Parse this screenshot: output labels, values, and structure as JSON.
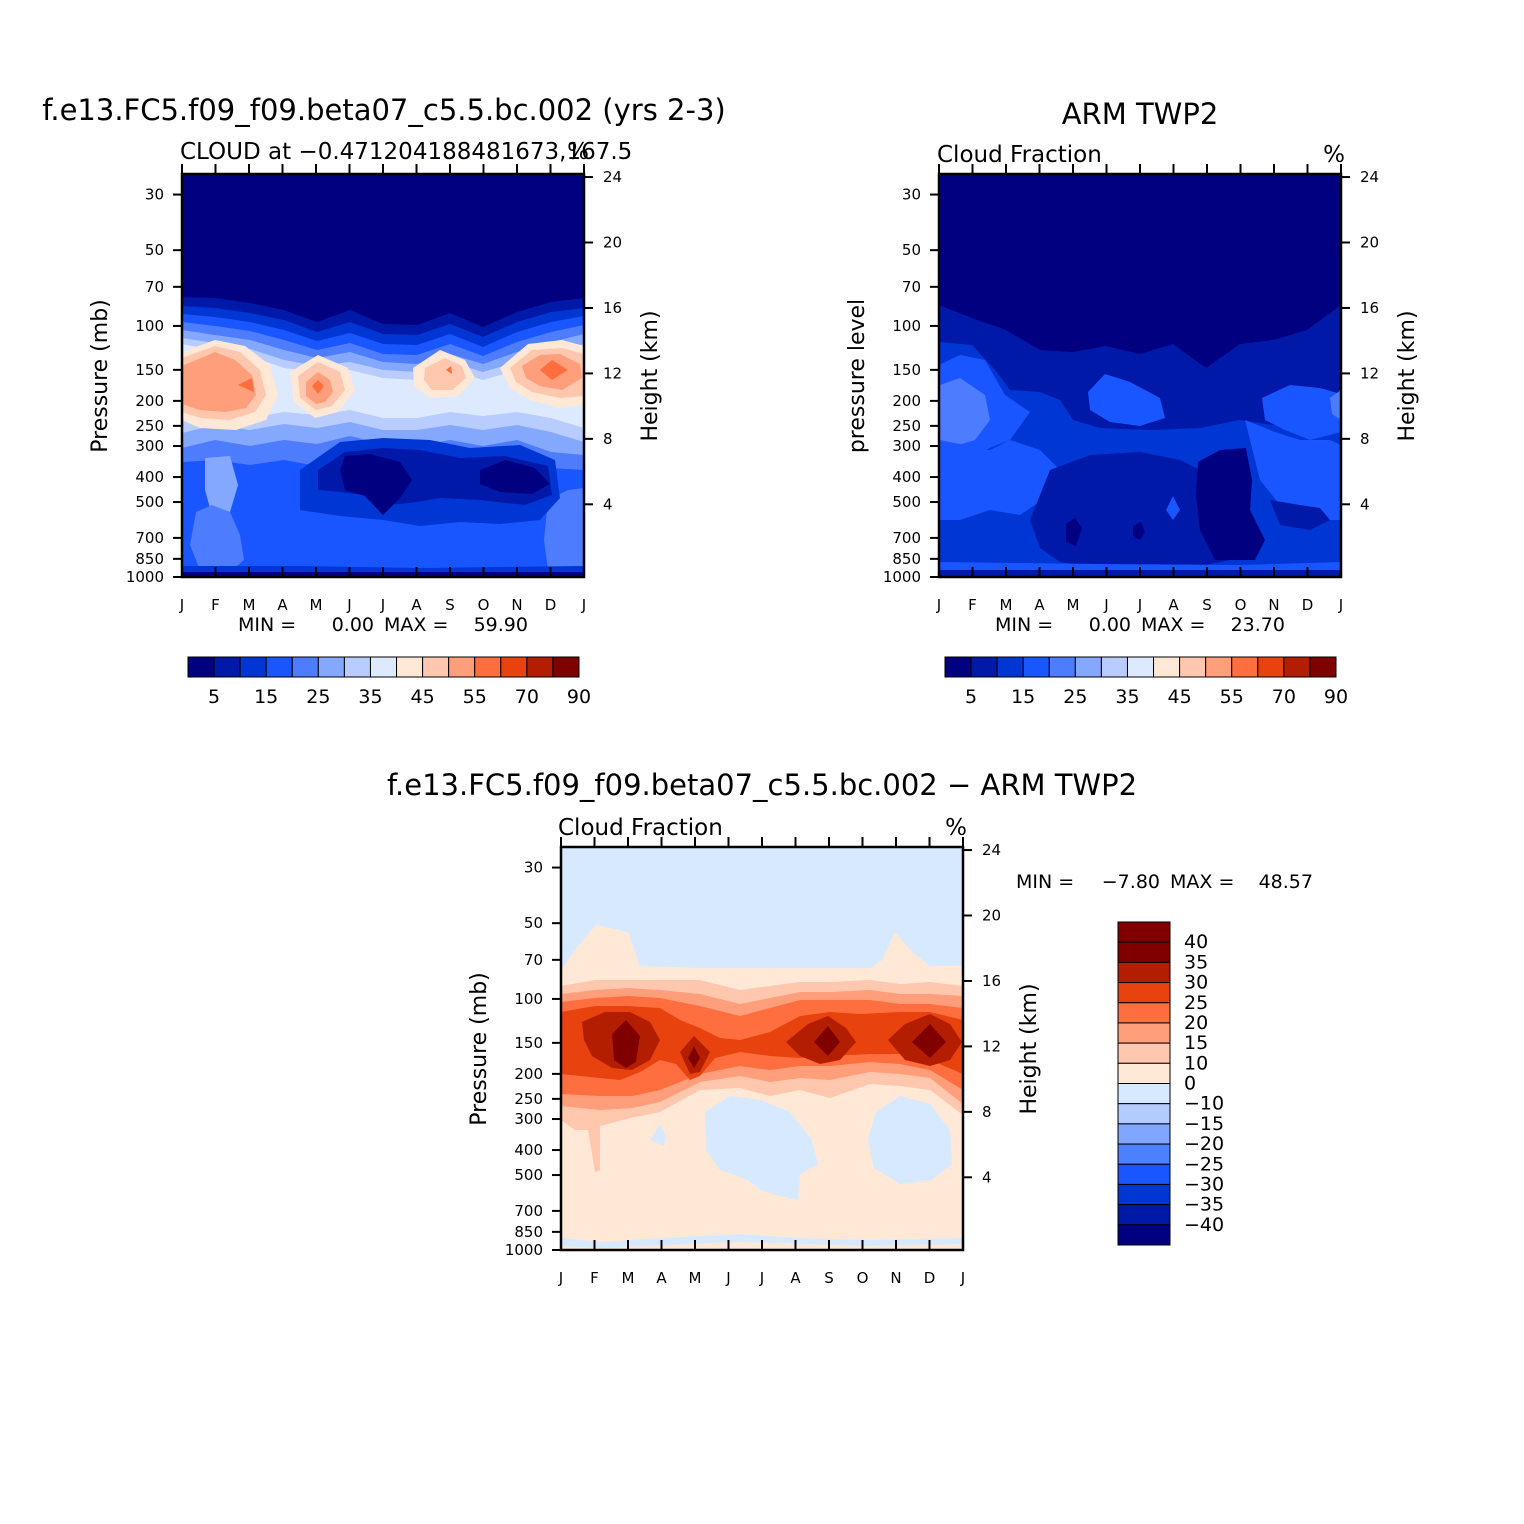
{
  "chart_data": [
    {
      "type": "contour",
      "title": "f.e13.FC5.f09_f09.beta07_c5.5.bc.002 (yrs 2-3)",
      "subtitle_left": "CLOUD at −0.471204188481673,167.5",
      "subtitle_right": "%",
      "ylabel_left": "Pressure (mb)",
      "ylabel_right": "Height (km)",
      "x_ticks": [
        "J",
        "F",
        "M",
        "A",
        "M",
        "J",
        "J",
        "A",
        "S",
        "O",
        "N",
        "D",
        "J"
      ],
      "y_ticks_pressure": [
        "30",
        "50",
        "70",
        "100",
        "150",
        "200",
        "250",
        "300",
        "400",
        "500",
        "700",
        "850",
        "1000"
      ],
      "y_ticks_height": [
        "24",
        "20",
        "16",
        "12",
        "8",
        "4"
      ],
      "min_label": "MIN =",
      "min_value": "0.00",
      "max_label": "MAX =",
      "max_value": "59.90",
      "levels": [
        5,
        10,
        15,
        20,
        25,
        30,
        35,
        40,
        45,
        50,
        55,
        60,
        70,
        80,
        90
      ],
      "colorbar_labels": [
        "5",
        "15",
        "25",
        "35",
        "45",
        "55",
        "70",
        "90"
      ]
    },
    {
      "type": "contour",
      "title": "ARM TWP2",
      "subtitle_left": "Cloud Fraction",
      "subtitle_right": "%",
      "ylabel_left": "pressure level",
      "ylabel_right": "Height (km)",
      "x_ticks": [
        "J",
        "F",
        "M",
        "A",
        "M",
        "J",
        "J",
        "A",
        "S",
        "O",
        "N",
        "D",
        "J"
      ],
      "y_ticks_pressure": [
        "30",
        "50",
        "70",
        "100",
        "150",
        "200",
        "250",
        "300",
        "400",
        "500",
        "700",
        "850",
        "1000"
      ],
      "y_ticks_height": [
        "24",
        "20",
        "16",
        "12",
        "8",
        "4"
      ],
      "min_label": "MIN =",
      "min_value": "0.00",
      "max_label": "MAX =",
      "max_value": "23.70",
      "levels": [
        5,
        10,
        15,
        20,
        25,
        30,
        35,
        40,
        45,
        50,
        55,
        60,
        70,
        80,
        90
      ],
      "colorbar_labels": [
        "5",
        "15",
        "25",
        "35",
        "45",
        "55",
        "70",
        "90"
      ]
    },
    {
      "type": "contour",
      "title": "f.e13.FC5.f09_f09.beta07_c5.5.bc.002 − ARM TWP2",
      "subtitle_left": "Cloud Fraction",
      "subtitle_right": "%",
      "ylabel_left": "Pressure (mb)",
      "ylabel_right": "Height (km)",
      "x_ticks": [
        "J",
        "F",
        "M",
        "A",
        "M",
        "J",
        "J",
        "A",
        "S",
        "O",
        "N",
        "D",
        "J"
      ],
      "y_ticks_pressure": [
        "30",
        "50",
        "70",
        "100",
        "150",
        "200",
        "250",
        "300",
        "400",
        "500",
        "700",
        "850",
        "1000"
      ],
      "y_ticks_height": [
        "24",
        "20",
        "16",
        "12",
        "8",
        "4"
      ],
      "min_label": "MIN =",
      "min_value": "−7.80",
      "max_label": "MAX =",
      "max_value": "48.57",
      "levels": [
        -40,
        -35,
        -30,
        -25,
        -20,
        -15,
        -10,
        0,
        10,
        15,
        20,
        25,
        30,
        35,
        40
      ],
      "colorbar_labels": [
        "40",
        "35",
        "30",
        "25",
        "20",
        "15",
        "10",
        "0",
        "−10",
        "−15",
        "−20",
        "−25",
        "−30",
        "−35",
        "−40"
      ]
    }
  ],
  "palettes": {
    "sequential": [
      "#000080",
      "#0019a8",
      "#0036d4",
      "#1a56ff",
      "#4d7cff",
      "#85a8ff",
      "#b8ccff",
      "#dce9ff",
      "#ffe8d6",
      "#ffc7ad",
      "#ff9e7a",
      "#ff6e3e",
      "#e8420f",
      "#b41e00",
      "#800000"
    ],
    "diverging": [
      "#800000",
      "#b41e00",
      "#e8420f",
      "#ff6e3e",
      "#ff9e7a",
      "#ffc7ad",
      "#ffe8d6",
      "#d6e9ff",
      "#b3ccff",
      "#80a6ff",
      "#4d80ff",
      "#1a56ff",
      "#0036d4",
      "#001aa8",
      "#000080"
    ]
  },
  "contour_colors": {
    "deep_blue": "#000080",
    "blue_1": "#0019a8",
    "blue_2": "#0036d4",
    "blue_3": "#1a56ff",
    "blue_4": "#4d7cff",
    "blue_5": "#85a8ff",
    "blue_6": "#b8ccff",
    "blue_7": "#dce9ff",
    "peach_1": "#ffe8d6",
    "peach_2": "#ffc7ad",
    "peach_3": "#ff9e7a",
    "red_1": "#ff6e3e",
    "red_2": "#e8420f",
    "red_3": "#b41e00",
    "red_4": "#800000",
    "diff_light_blue": "#d6e9ff"
  }
}
